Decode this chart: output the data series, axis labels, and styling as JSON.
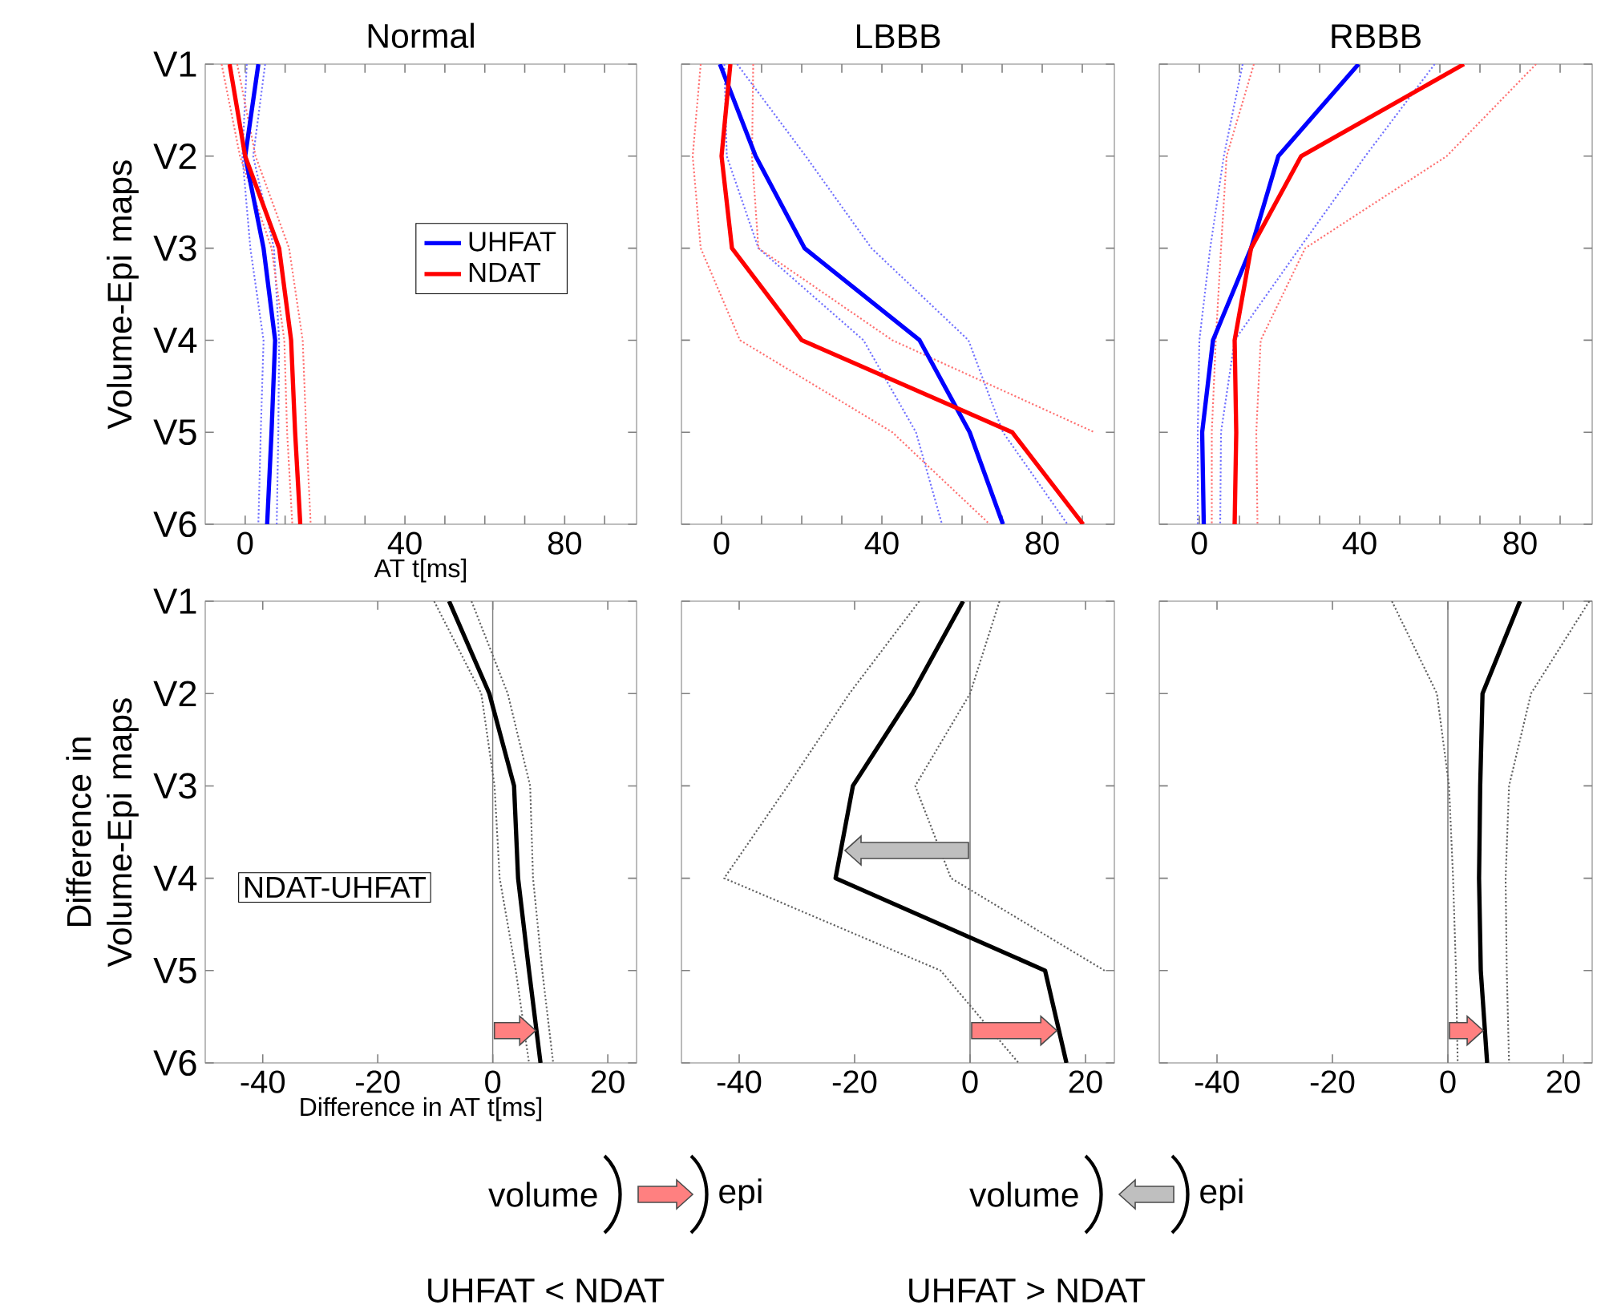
{
  "chart_data": [
    {
      "type": "line",
      "orientation": "horizontal",
      "title": "Normal",
      "xlabel": "AT t[ms]",
      "ylabel": "Volume-Epi maps",
      "categories": [
        "V1",
        "V2",
        "V3",
        "V4",
        "V5",
        "V6"
      ],
      "xlim": [
        -10,
        98
      ],
      "xticks": [
        0,
        {
          "value": 10,
          "label": null
        },
        {
          "value": 20,
          "label": null
        },
        {
          "value": 30,
          "label": null
        },
        40,
        {
          "value": 50,
          "label": null
        },
        {
          "value": 60,
          "label": null
        },
        {
          "value": 70,
          "label": null
        },
        80,
        {
          "value": 90,
          "label": null
        }
      ],
      "legend": "right",
      "series": [
        {
          "color": "#7070ff",
          "line_style": "dotted",
          "values": [
            0.4,
            -0.7,
            1.3,
            4.6,
            3.9,
            3.3
          ]
        },
        {
          "color": "#7070ff",
          "line_style": "dotted",
          "values": [
            5,
            2,
            7.2,
            8.5,
            8.3,
            7.9
          ]
        },
        {
          "color": "#ff7070",
          "line_style": "dotted",
          "values": [
            -5.9,
            -1.3,
            6.6,
            9.8,
            10.5,
            11.8
          ]
        },
        {
          "color": "#ff7070",
          "line_style": "dotted",
          "values": [
            -2,
            2.6,
            11,
            14.4,
            15.3,
            16.4
          ]
        },
        {
          "name": "UHFAT",
          "color": "#0000ff",
          "line_style": "solid",
          "values": [
            3.3,
            0,
            4.6,
            7.5,
            6.6,
            5.5
          ]
        },
        {
          "name": "NDAT",
          "color": "#ff0000",
          "line_style": "solid",
          "values": [
            -3.9,
            0,
            8.5,
            11.5,
            12.5,
            13.8
          ]
        }
      ]
    },
    {
      "type": "line",
      "orientation": "horizontal",
      "title": "LBBB",
      "categories": [
        null,
        null,
        null,
        null,
        null,
        null
      ],
      "xlim": [
        -10,
        98
      ],
      "xticks": [
        0,
        {
          "value": 10,
          "label": null
        },
        {
          "value": 20,
          "label": null
        },
        {
          "value": 30,
          "label": null
        },
        40,
        {
          "value": 50,
          "label": null
        },
        {
          "value": 60,
          "label": null
        },
        {
          "value": 70,
          "label": null
        },
        80,
        {
          "value": 90,
          "label": null
        }
      ],
      "series": [
        {
          "color": "#7070ff",
          "line_style": "dotted",
          "values": [
            0.7,
            1.3,
            9.2,
            35.4,
            48.5,
            55
          ]
        },
        {
          "color": "#7070ff",
          "line_style": "dotted",
          "values": [
            3.9,
            21,
            37.4,
            61.6,
            70.2,
            86.3
          ]
        },
        {
          "color": "#ff7070",
          "line_style": "dotted",
          "values": [
            -5.2,
            -7.2,
            -5.2,
            4.6,
            42.6,
            66.9
          ]
        },
        {
          "color": "#ff7070",
          "line_style": "dotted",
          "values": [
            7.9,
            7.6,
            9.2,
            42.6,
            93,
            null
          ]
        },
        {
          "color": "#0000ff",
          "line_style": "solid",
          "values": [
            -0.4,
            8.5,
            20.7,
            49.4,
            61.9,
            70.2
          ]
        },
        {
          "color": "#ff0000",
          "line_style": "solid",
          "values": [
            2.2,
            0,
            2.6,
            20,
            72.5,
            90.2
          ]
        }
      ]
    },
    {
      "type": "line",
      "orientation": "horizontal",
      "title": "RBBB",
      "categories": [
        null,
        null,
        null,
        null,
        null,
        null
      ],
      "xlim": [
        -10,
        98
      ],
      "xticks": [
        0,
        {
          "value": 10,
          "label": null
        },
        {
          "value": 20,
          "label": null
        },
        {
          "value": 30,
          "label": null
        },
        40,
        {
          "value": 50,
          "label": null
        },
        {
          "value": 60,
          "label": null
        },
        {
          "value": 70,
          "label": null
        },
        80,
        {
          "value": 90,
          "label": null
        }
      ],
      "series": [
        {
          "color": "#7070ff",
          "line_style": "dotted",
          "values": [
            10.8,
            6.1,
            2.7,
            0,
            -0.4,
            -0.4
          ]
        },
        {
          "color": "#7070ff",
          "line_style": "dotted",
          "values": [
            58.7,
            41.4,
            25,
            8.8,
            5.4,
            5.2
          ]
        },
        {
          "color": "#ff7070",
          "line_style": "dotted",
          "values": [
            13.6,
            6.8,
            5.4,
            4.1,
            3.1,
            3.1
          ]
        },
        {
          "color": "#ff7070",
          "line_style": "dotted",
          "values": [
            84,
            61.7,
            26.4,
            15.3,
            14.2,
            14.5
          ]
        },
        {
          "color": "#0000ff",
          "line_style": "solid",
          "values": [
            39.7,
            19.7,
            12.9,
            3.4,
            0.7,
            1.1
          ]
        },
        {
          "color": "#ff0000",
          "line_style": "solid",
          "values": [
            66,
            25.4,
            12.9,
            8.8,
            9.2,
            8.8
          ]
        }
      ]
    },
    {
      "type": "line",
      "orientation": "horizontal",
      "xlabel": "Difference in AT  t[ms]",
      "ylabel": "Difference in Volume-Epi maps",
      "categories": [
        "V1",
        "V2",
        "V3",
        "V4",
        "V5",
        "V6"
      ],
      "xlim": [
        -50,
        25
      ],
      "xticks": [
        -40,
        -20,
        0,
        20
      ],
      "annotations": [
        "NDAT-UHFAT"
      ],
      "ref_lines": [
        {
          "axis": "x",
          "value": 0,
          "color": "#808080"
        }
      ],
      "series": [
        {
          "color": "#606060",
          "line_style": "dotted",
          "values": [
            -10.2,
            -2,
            0.3,
            1.2,
            4,
            6.3
          ]
        },
        {
          "color": "#606060",
          "line_style": "dotted",
          "values": [
            -3.7,
            2.6,
            6.5,
            7,
            8.6,
            10.5
          ]
        },
        {
          "color": "#000000",
          "line_style": "solid",
          "values": [
            -7.6,
            -0.6,
            3.7,
            4.4,
            6.3,
            8.3
          ]
        }
      ]
    },
    {
      "type": "line",
      "orientation": "horizontal",
      "categories": [
        null,
        null,
        null,
        null,
        null,
        null
      ],
      "xlim": [
        -50,
        25
      ],
      "xticks": [
        -40,
        -20,
        0,
        20
      ],
      "ref_lines": [
        {
          "axis": "x",
          "value": 0,
          "color": "#808080"
        }
      ],
      "series": [
        {
          "color": "#606060",
          "line_style": "dotted",
          "values": [
            -8.8,
            -20.9,
            -31.6,
            -42.6,
            -5.1,
            8.4
          ]
        },
        {
          "color": "#606060",
          "line_style": "dotted",
          "values": [
            5.1,
            0,
            -9.5,
            -3.3,
            23.3,
            null
          ]
        },
        {
          "color": "#000000",
          "line_style": "solid",
          "values": [
            -1.2,
            -10,
            -20.3,
            -23.3,
            13,
            16.7
          ]
        }
      ]
    },
    {
      "type": "line",
      "orientation": "horizontal",
      "categories": [
        null,
        null,
        null,
        null,
        null,
        null
      ],
      "xlim": [
        -50,
        25
      ],
      "xticks": [
        -40,
        -20,
        0,
        20
      ],
      "ref_lines": [
        {
          "axis": "x",
          "value": 0,
          "color": "#808080"
        }
      ],
      "series": [
        {
          "color": "#606060",
          "line_style": "dotted",
          "values": [
            -9.7,
            -1.9,
            0.2,
            0.9,
            1.4,
            1.7
          ]
        },
        {
          "color": "#606060",
          "line_style": "dotted",
          "values": [
            24.5,
            14.4,
            10.6,
            10,
            10.2,
            10.6
          ]
        },
        {
          "color": "#000000",
          "line_style": "solid",
          "values": [
            12.5,
            6,
            5.6,
            5.4,
            5.7,
            6.8
          ]
        }
      ]
    },
    {
      "type": "other",
      "annotations": [
        "volume",
        "epi",
        "UHFAT < NDAT",
        "volume",
        "epi",
        "UHFAT > NDAT"
      ]
    }
  ]
}
